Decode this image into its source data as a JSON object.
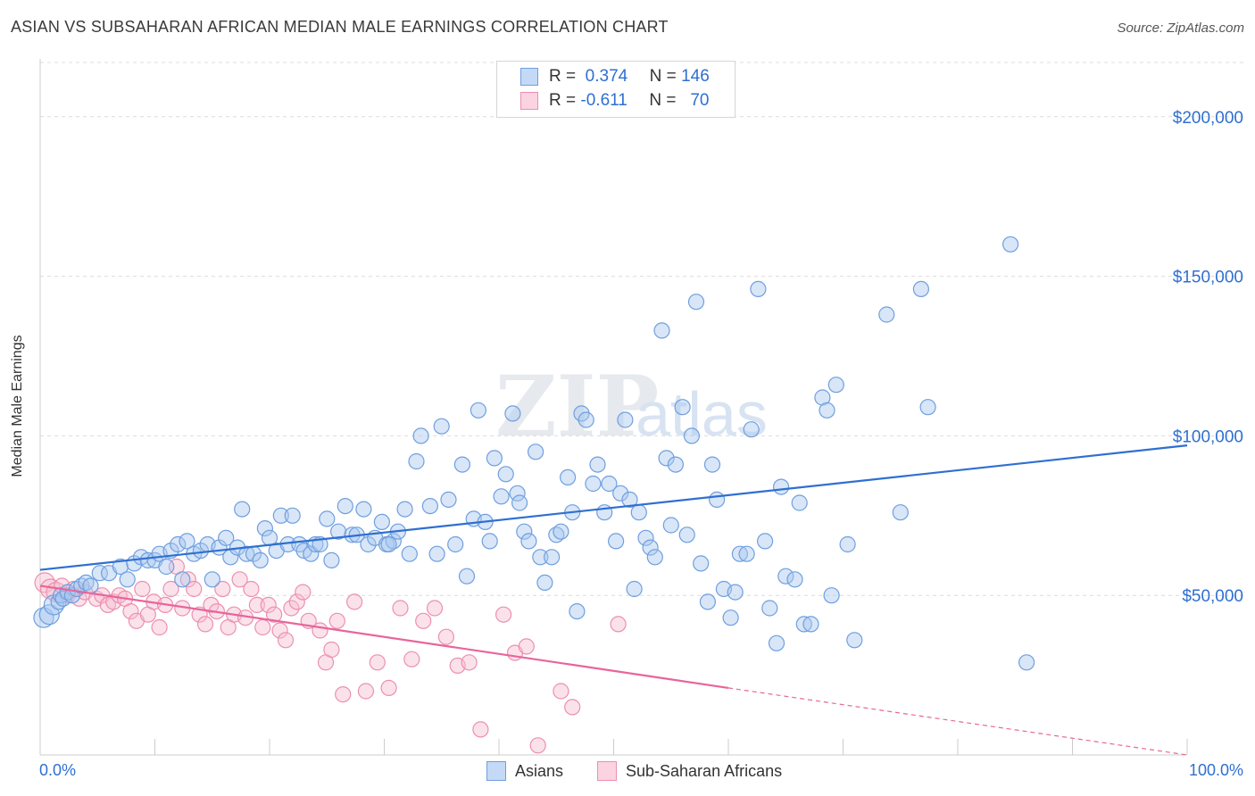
{
  "title": "ASIAN VS SUBSAHARAN AFRICAN MEDIAN MALE EARNINGS CORRELATION CHART",
  "source": "Source: ZipAtlas.com",
  "watermark": {
    "zip": "ZIP",
    "atlas": "atlas"
  },
  "legend": {
    "r_label": "R =",
    "n_label": "N =",
    "asians": {
      "r": "0.374",
      "n": "146"
    },
    "africans": {
      "r": "-0.611",
      "n": "70"
    }
  },
  "colors": {
    "asian_fill": "#a9c8f0",
    "asian_stroke": "#6f9fde",
    "asian_line": "#2f6fd1",
    "african_fill": "#f7bfd1",
    "african_stroke": "#ec8fb0",
    "african_line": "#e8659a",
    "grid": "#dcdcdc",
    "tick_text": "#2f6fd1"
  },
  "chart_data": {
    "type": "scatter",
    "title": "ASIAN VS SUBSAHARAN AFRICAN MEDIAN MALE EARNINGS CORRELATION CHART",
    "xlabel": "",
    "ylabel": "Median Male Earnings",
    "xlim": [
      0,
      100
    ],
    "ylim": [
      0,
      217000
    ],
    "x_tick_labels": [
      "0.0%",
      "100.0%"
    ],
    "y_ticks": [
      50000,
      100000,
      150000,
      200000
    ],
    "y_tick_labels": [
      "$50,000",
      "$100,000",
      "$150,000",
      "$200,000"
    ],
    "grid": true,
    "legend_position": "top-center",
    "series": [
      {
        "name": "Asians",
        "r": 0.374,
        "n": 146,
        "trend": {
          "x": [
            0,
            100
          ],
          "y": [
            58000,
            97000
          ]
        },
        "points": [
          [
            0.3,
            43000
          ],
          [
            0.8,
            44000
          ],
          [
            1.2,
            47000
          ],
          [
            1.6,
            48000
          ],
          [
            1.8,
            50000
          ],
          [
            2.0,
            49000
          ],
          [
            2.4,
            51000
          ],
          [
            2.8,
            50000
          ],
          [
            3.2,
            52000
          ],
          [
            3.6,
            53000
          ],
          [
            4.0,
            54000
          ],
          [
            4.4,
            53000
          ],
          [
            5.2,
            57000
          ],
          [
            6.0,
            57000
          ],
          [
            7.0,
            59000
          ],
          [
            7.6,
            55000
          ],
          [
            8.2,
            60000
          ],
          [
            8.8,
            62000
          ],
          [
            9.4,
            61000
          ],
          [
            10.0,
            61000
          ],
          [
            10.4,
            63000
          ],
          [
            11.0,
            59000
          ],
          [
            11.4,
            64000
          ],
          [
            12.0,
            66000
          ],
          [
            12.4,
            55000
          ],
          [
            12.8,
            67000
          ],
          [
            13.4,
            63000
          ],
          [
            14.0,
            64000
          ],
          [
            14.6,
            66000
          ],
          [
            15.0,
            55000
          ],
          [
            15.6,
            65000
          ],
          [
            16.2,
            68000
          ],
          [
            16.6,
            62000
          ],
          [
            17.2,
            65000
          ],
          [
            17.6,
            77000
          ],
          [
            18.0,
            63000
          ],
          [
            18.6,
            63000
          ],
          [
            19.2,
            61000
          ],
          [
            19.6,
            71000
          ],
          [
            20.0,
            68000
          ],
          [
            20.6,
            64000
          ],
          [
            21.0,
            75000
          ],
          [
            21.6,
            66000
          ],
          [
            22.0,
            75000
          ],
          [
            22.6,
            66000
          ],
          [
            23.0,
            64000
          ],
          [
            23.6,
            63000
          ],
          [
            24.0,
            66000
          ],
          [
            24.4,
            66000
          ],
          [
            25.0,
            74000
          ],
          [
            25.4,
            61000
          ],
          [
            26.0,
            70000
          ],
          [
            26.6,
            78000
          ],
          [
            27.2,
            69000
          ],
          [
            27.6,
            69000
          ],
          [
            28.2,
            77000
          ],
          [
            28.6,
            66000
          ],
          [
            29.2,
            68000
          ],
          [
            29.8,
            73000
          ],
          [
            30.2,
            66000
          ],
          [
            30.8,
            67000
          ],
          [
            31.2,
            70000
          ],
          [
            31.8,
            77000
          ],
          [
            32.2,
            63000
          ],
          [
            32.8,
            92000
          ],
          [
            33.2,
            100000
          ],
          [
            34.0,
            78000
          ],
          [
            34.6,
            63000
          ],
          [
            35.0,
            103000
          ],
          [
            35.6,
            80000
          ],
          [
            36.2,
            66000
          ],
          [
            36.8,
            91000
          ],
          [
            37.2,
            56000
          ],
          [
            37.8,
            74000
          ],
          [
            38.2,
            108000
          ],
          [
            38.8,
            73000
          ],
          [
            39.2,
            67000
          ],
          [
            39.6,
            93000
          ],
          [
            40.2,
            81000
          ],
          [
            40.6,
            88000
          ],
          [
            41.2,
            107000
          ],
          [
            41.6,
            82000
          ],
          [
            42.2,
            70000
          ],
          [
            42.6,
            67000
          ],
          [
            43.2,
            95000
          ],
          [
            43.6,
            62000
          ],
          [
            44.0,
            54000
          ],
          [
            44.6,
            62000
          ],
          [
            45.0,
            69000
          ],
          [
            45.4,
            70000
          ],
          [
            46.0,
            87000
          ],
          [
            46.4,
            76000
          ],
          [
            46.8,
            45000
          ],
          [
            47.2,
            107000
          ],
          [
            47.6,
            105000
          ],
          [
            48.2,
            85000
          ],
          [
            48.6,
            91000
          ],
          [
            49.2,
            76000
          ],
          [
            49.6,
            85000
          ],
          [
            50.2,
            67000
          ],
          [
            50.6,
            82000
          ],
          [
            51.0,
            105000
          ],
          [
            51.4,
            80000
          ],
          [
            51.8,
            52000
          ],
          [
            52.2,
            76000
          ],
          [
            52.8,
            68000
          ],
          [
            53.2,
            65000
          ],
          [
            53.6,
            62000
          ],
          [
            54.2,
            133000
          ],
          [
            54.6,
            93000
          ],
          [
            55.0,
            72000
          ],
          [
            55.4,
            91000
          ],
          [
            56.0,
            109000
          ],
          [
            56.4,
            69000
          ],
          [
            56.8,
            100000
          ],
          [
            57.2,
            142000
          ],
          [
            57.6,
            60000
          ],
          [
            58.2,
            48000
          ],
          [
            58.6,
            91000
          ],
          [
            59.0,
            80000
          ],
          [
            59.6,
            52000
          ],
          [
            60.2,
            43000
          ],
          [
            60.6,
            51000
          ],
          [
            61.0,
            63000
          ],
          [
            61.6,
            63000
          ],
          [
            62.0,
            102000
          ],
          [
            62.6,
            146000
          ],
          [
            63.2,
            67000
          ],
          [
            63.6,
            46000
          ],
          [
            64.2,
            35000
          ],
          [
            65.0,
            56000
          ],
          [
            65.8,
            55000
          ],
          [
            66.2,
            79000
          ],
          [
            66.6,
            41000
          ],
          [
            67.2,
            41000
          ],
          [
            68.2,
            112000
          ],
          [
            68.6,
            108000
          ],
          [
            69.0,
            50000
          ],
          [
            69.4,
            116000
          ],
          [
            70.4,
            66000
          ],
          [
            71.0,
            36000
          ],
          [
            73.8,
            138000
          ],
          [
            75.0,
            76000
          ],
          [
            76.8,
            146000
          ],
          [
            77.4,
            109000
          ],
          [
            84.6,
            160000
          ],
          [
            86.0,
            29000
          ],
          [
            64.6,
            84000
          ],
          [
            41.8,
            79000
          ],
          [
            30.4,
            66000
          ]
        ]
      },
      {
        "name": "Sub-Saharan Africans",
        "r": -0.611,
        "n": 70,
        "trend": {
          "x": [
            0,
            60
          ],
          "y": [
            53000,
            21000
          ]
        },
        "trend_dashed": {
          "x": [
            60,
            100
          ],
          "y": [
            21000,
            0
          ]
        },
        "points": [
          [
            0.4,
            54000
          ],
          [
            0.9,
            52000
          ],
          [
            1.4,
            51000
          ],
          [
            1.9,
            53000
          ],
          [
            2.4,
            50000
          ],
          [
            2.9,
            52000
          ],
          [
            3.4,
            49000
          ],
          [
            3.9,
            51000
          ],
          [
            4.9,
            49000
          ],
          [
            5.4,
            50000
          ],
          [
            5.9,
            47000
          ],
          [
            6.4,
            48000
          ],
          [
            6.9,
            50000
          ],
          [
            7.4,
            49000
          ],
          [
            7.9,
            45000
          ],
          [
            8.4,
            42000
          ],
          [
            8.9,
            52000
          ],
          [
            9.4,
            44000
          ],
          [
            9.9,
            48000
          ],
          [
            10.4,
            40000
          ],
          [
            10.9,
            47000
          ],
          [
            11.4,
            52000
          ],
          [
            11.9,
            59000
          ],
          [
            12.4,
            46000
          ],
          [
            12.9,
            55000
          ],
          [
            13.4,
            52000
          ],
          [
            13.9,
            44000
          ],
          [
            14.4,
            41000
          ],
          [
            14.9,
            47000
          ],
          [
            15.4,
            45000
          ],
          [
            15.9,
            52000
          ],
          [
            16.4,
            40000
          ],
          [
            16.9,
            44000
          ],
          [
            17.4,
            55000
          ],
          [
            17.9,
            43000
          ],
          [
            18.4,
            52000
          ],
          [
            18.9,
            47000
          ],
          [
            19.4,
            40000
          ],
          [
            19.9,
            47000
          ],
          [
            20.4,
            44000
          ],
          [
            20.9,
            39000
          ],
          [
            21.4,
            36000
          ],
          [
            21.9,
            46000
          ],
          [
            22.4,
            48000
          ],
          [
            22.9,
            51000
          ],
          [
            23.4,
            42000
          ],
          [
            24.4,
            39000
          ],
          [
            24.9,
            29000
          ],
          [
            25.4,
            33000
          ],
          [
            25.9,
            42000
          ],
          [
            26.4,
            19000
          ],
          [
            27.4,
            48000
          ],
          [
            28.4,
            20000
          ],
          [
            29.4,
            29000
          ],
          [
            30.4,
            21000
          ],
          [
            31.4,
            46000
          ],
          [
            32.4,
            30000
          ],
          [
            33.4,
            42000
          ],
          [
            34.4,
            46000
          ],
          [
            35.4,
            37000
          ],
          [
            36.4,
            28000
          ],
          [
            37.4,
            29000
          ],
          [
            38.4,
            8000
          ],
          [
            40.4,
            44000
          ],
          [
            41.4,
            32000
          ],
          [
            42.4,
            34000
          ],
          [
            43.4,
            3000
          ],
          [
            45.4,
            20000
          ],
          [
            46.4,
            15000
          ],
          [
            50.4,
            41000
          ]
        ]
      }
    ]
  },
  "bottom_legend": {
    "asians": "Asians",
    "africans": "Sub-Saharan Africans"
  }
}
